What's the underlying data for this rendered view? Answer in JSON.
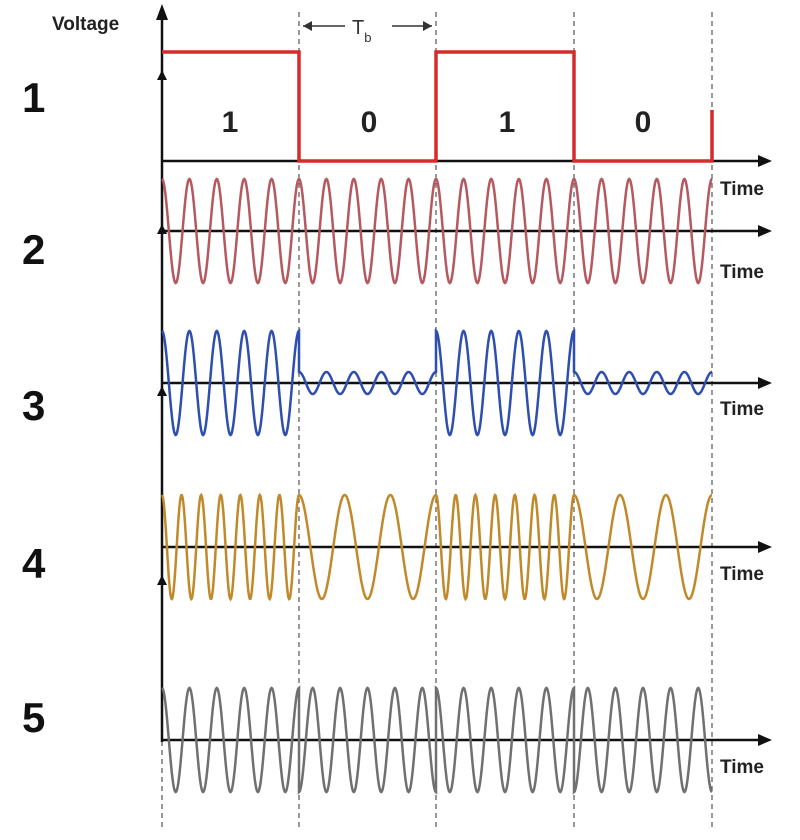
{
  "y_axis_label": "Voltage",
  "period_label": "T",
  "period_subscript": "b",
  "bits": [
    "1",
    "0",
    "1",
    "0"
  ],
  "x_axis_label": "Time",
  "rows": [
    {
      "number": "1",
      "kind": "data",
      "color": "#d62b2b"
    },
    {
      "number": "2",
      "kind": "carrier",
      "color": "#b5595e"
    },
    {
      "number": "3",
      "kind": "ask",
      "color": "#2e4fb0"
    },
    {
      "number": "4",
      "kind": "fsk",
      "color": "#c08a2a"
    },
    {
      "number": "5",
      "kind": "psk",
      "color": "#707070"
    }
  ],
  "colors": {
    "axis": "#111111",
    "divider": "#555555"
  }
}
